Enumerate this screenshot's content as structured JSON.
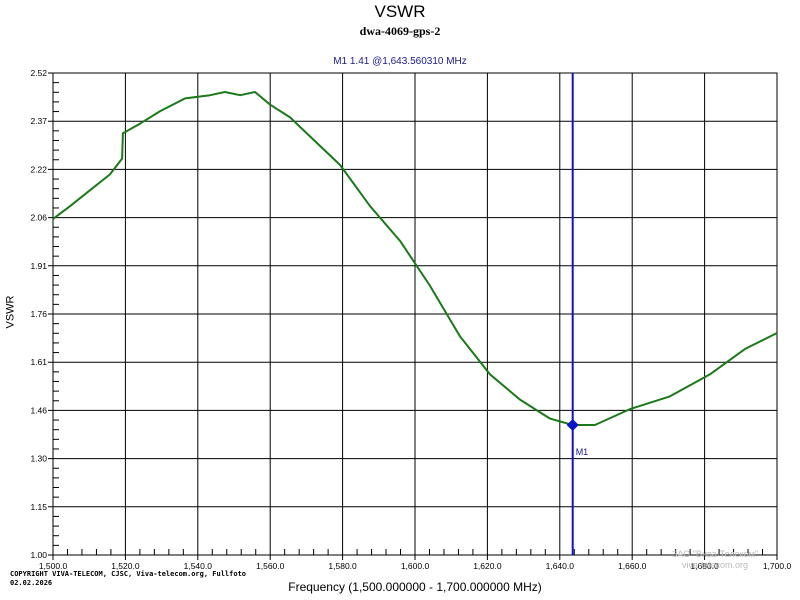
{
  "chart": {
    "title": "VSWR",
    "subtitle": "dwa-4069-gps-2",
    "marker_readout": "M1   1.41 @1,643.560310 MHz",
    "ylabel": "VSWR",
    "xlabel": "Frequency (1,500.000000 - 1,700.000000 MHz)",
    "copyright_line1": "COPYRIGHT VIVA-TELECOM, CJSC, Viva-telecom.org, Fullfoto",
    "copyright_line2": "02.02.2026",
    "watermark_line1": "ЗАО \"Вива-Телеком\"",
    "watermark_line2": "viva-telecom.org",
    "marker_label": "M1",
    "colors": {
      "trace": "#1a7a1a",
      "marker": "#0a14c8",
      "grid": "#000000",
      "readout": "#1a1a8c"
    }
  },
  "chart_data": {
    "type": "line",
    "title": "VSWR",
    "subtitle": "dwa-4069-gps-2",
    "xlabel": "Frequency (1,500.000000 - 1,700.000000 MHz)",
    "ylabel": "VSWR",
    "xlim": [
      1500,
      1700
    ],
    "ylim": [
      1.0,
      2.52
    ],
    "x_ticks": [
      "1,500.0",
      "1,520.0",
      "1,540.0",
      "1,560.0",
      "1,580.0",
      "1,600.0",
      "1,620.0",
      "1,640.0",
      "1,660.0",
      "1,680.0",
      "1,700.0"
    ],
    "y_ticks": [
      "2.52",
      "2.37",
      "2.22",
      "2.06",
      "1.91",
      "1.76",
      "1.61",
      "1.46",
      "1.30",
      "1.15",
      "1.00"
    ],
    "grid": true,
    "legend": "none",
    "series": [
      {
        "name": "VSWR",
        "x": [
          1500.0,
          1504.7,
          1510.2,
          1515.7,
          1519.1,
          1519.3,
          1524.0,
          1529.6,
          1536.5,
          1543.4,
          1547.5,
          1551.7,
          1555.8,
          1560.0,
          1565.5,
          1571.0,
          1579.3,
          1587.6,
          1595.9,
          1604.1,
          1612.4,
          1620.7,
          1629.0,
          1637.3,
          1643.56,
          1649.7,
          1659.4,
          1670.4,
          1681.5,
          1691.2,
          1700.0
        ],
        "values": [
          2.06,
          2.1,
          2.15,
          2.2,
          2.25,
          2.33,
          2.36,
          2.4,
          2.44,
          2.45,
          2.46,
          2.45,
          2.46,
          2.42,
          2.38,
          2.32,
          2.23,
          2.1,
          1.99,
          1.85,
          1.69,
          1.57,
          1.49,
          1.43,
          1.41,
          1.41,
          1.46,
          1.5,
          1.57,
          1.65,
          1.7
        ]
      }
    ],
    "markers": [
      {
        "name": "M1",
        "x": 1643.56031,
        "y": 1.41
      }
    ]
  }
}
